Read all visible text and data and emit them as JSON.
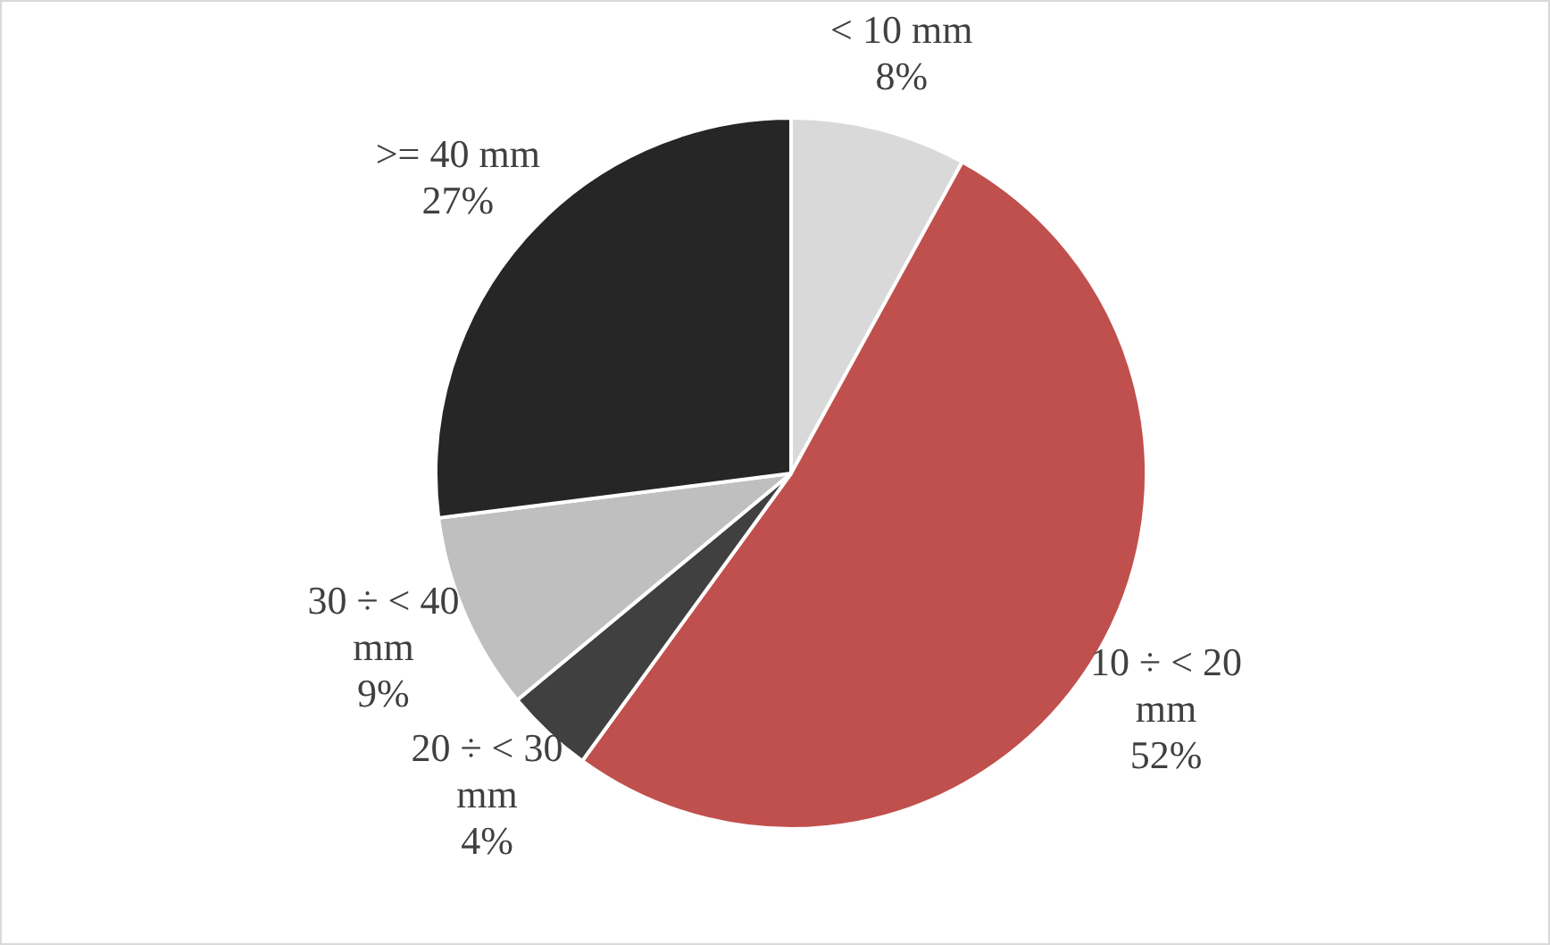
{
  "chart_data": {
    "type": "pie",
    "categories": [
      "< 10 mm",
      "10 ÷ < 20 mm",
      "20 ÷ < 30 mm",
      "30 ÷ < 40 mm",
      ">= 40 mm"
    ],
    "values": [
      8,
      52,
      4,
      9,
      27
    ],
    "value_labels": [
      "8%",
      "52%",
      "4%",
      "9%",
      "27%"
    ],
    "colors": [
      "#d9d9d9",
      "#c0504d",
      "#404040",
      "#bfbfbf",
      "#262626"
    ],
    "legend": false
  }
}
